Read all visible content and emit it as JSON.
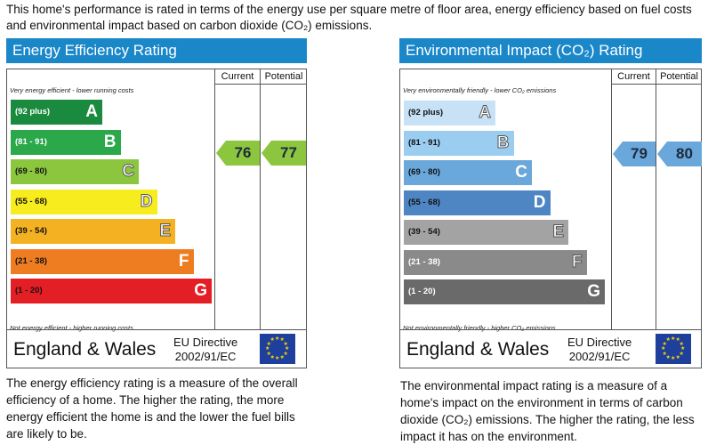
{
  "intro": "This home's performance is rated in terms of the energy use per square metre of floor area, energy efficiency based on fuel costs and environmental impact based on carbon dioxide (CO₂) emissions.",
  "chart_data": [
    {
      "type": "bar",
      "title": "Energy Efficiency Rating",
      "columns": [
        "Current",
        "Potential"
      ],
      "top_note": "Very energy efficient - lower running costs",
      "bottom_note": "Not energy efficient - higher running costs",
      "bands": [
        {
          "range": "(92 plus)",
          "letter": "A",
          "color": "#1a8a3e",
          "range_color": "#ffffff",
          "outline": false
        },
        {
          "range": "(81 - 91)",
          "letter": "B",
          "color": "#2aa84a",
          "range_color": "#ffffff",
          "outline": false
        },
        {
          "range": "(69 - 80)",
          "letter": "C",
          "color": "#8cc63f",
          "range_color": "#111111",
          "outline": true
        },
        {
          "range": "(55 - 68)",
          "letter": "D",
          "color": "#f7ec1d",
          "range_color": "#111111",
          "outline": true
        },
        {
          "range": "(39 - 54)",
          "letter": "E",
          "color": "#f4b223",
          "range_color": "#111111",
          "outline": true
        },
        {
          "range": "(21 - 38)",
          "letter": "F",
          "color": "#ee7d22",
          "range_color": "#111111",
          "outline": false
        },
        {
          "range": "(1 - 20)",
          "letter": "G",
          "color": "#e31e24",
          "range_color": "#111111",
          "outline": false
        }
      ],
      "current": 76,
      "potential": 77,
      "current_band": "C",
      "potential_band": "C",
      "arrow_color": "#8cc63f",
      "region": "England & Wales",
      "directive": "EU Directive",
      "directive_code": "2002/91/EC"
    },
    {
      "type": "bar",
      "title": "Environmental Impact (CO₂) Rating",
      "columns": [
        "Current",
        "Potential"
      ],
      "top_note": "Very environmentally friendly - lower CO₂ emissions",
      "bottom_note": "Not environmentally friendly - higher CO₂ emissions",
      "bands": [
        {
          "range": "(92 plus)",
          "letter": "A",
          "color": "#c7e2f6",
          "range_color": "#111111",
          "outline": true
        },
        {
          "range": "(81 - 91)",
          "letter": "B",
          "color": "#9bcdf0",
          "range_color": "#111111",
          "outline": true
        },
        {
          "range": "(69 - 80)",
          "letter": "C",
          "color": "#6aa7da",
          "range_color": "#111111",
          "outline": false
        },
        {
          "range": "(55 - 68)",
          "letter": "D",
          "color": "#4e86c4",
          "range_color": "#111111",
          "outline": false
        },
        {
          "range": "(39 - 54)",
          "letter": "E",
          "color": "#a3a3a3",
          "range_color": "#111111",
          "outline": true
        },
        {
          "range": "(21 - 38)",
          "letter": "F",
          "color": "#8a8a8a",
          "range_color": "#ffffff",
          "outline": true
        },
        {
          "range": "(1 - 20)",
          "letter": "G",
          "color": "#6a6a6a",
          "range_color": "#ffffff",
          "outline": false
        }
      ],
      "current": 79,
      "potential": 80,
      "current_band": "C",
      "potential_band": "C",
      "arrow_color": "#6aa7da",
      "region": "England & Wales",
      "directive": "EU Directive",
      "directive_code": "2002/91/EC"
    }
  ],
  "descriptions": {
    "eer": "The energy efficiency rating is a measure of the overall efficiency of a home. The higher the rating, the more energy efficient the home is and the lower the fuel bills are likely to be.",
    "eir": "The environmental impact rating is a measure of a home's impact on the environment in terms of carbon dioxide (CO₂) emissions. The higher the rating, the less impact it has on the environment."
  },
  "flag_icon": "eu-flag-icon"
}
